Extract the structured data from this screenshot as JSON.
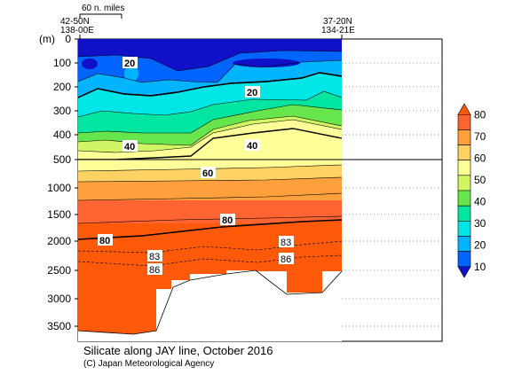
{
  "chart_data": {
    "type": "heatmap",
    "title": "Silicate along JAY line, October 2016",
    "credit": "(C) Japan Meteorological Agency",
    "y_unit_label": "(m)",
    "left_station": {
      "lat": "42-50N",
      "lon": "138-00E"
    },
    "right_station": {
      "lat": "37-20N",
      "lon": "134-21E"
    },
    "scale_bar_label": "60 n. miles",
    "upper_y_ticks": [
      0,
      100,
      200,
      300,
      400,
      500
    ],
    "lower_y_ticks": [
      1000,
      1500,
      2000,
      2500,
      3000,
      3500
    ],
    "y_split_depth": 500,
    "colorbar": {
      "ticks": [
        10,
        20,
        30,
        40,
        50,
        60,
        70,
        80
      ],
      "colors": [
        "#1010c8",
        "#0064ff",
        "#00b4ff",
        "#00e6e6",
        "#00e6a0",
        "#66e64c",
        "#d2f566",
        "#ffff99",
        "#ffd264",
        "#ffa03c",
        "#ff6432",
        "#ff5a0a"
      ]
    },
    "contour_labels": [
      {
        "text": "20",
        "dashed": false
      },
      {
        "text": "20",
        "dashed": false
      },
      {
        "text": "40",
        "dashed": false
      },
      {
        "text": "40",
        "dashed": false
      },
      {
        "text": "60",
        "dashed": false
      },
      {
        "text": "80",
        "dashed": false
      },
      {
        "text": "80",
        "dashed": false
      },
      {
        "text": "83",
        "dashed": true
      },
      {
        "text": "83",
        "dashed": true
      },
      {
        "text": "86",
        "dashed": true
      },
      {
        "text": "86",
        "dashed": true
      }
    ]
  }
}
